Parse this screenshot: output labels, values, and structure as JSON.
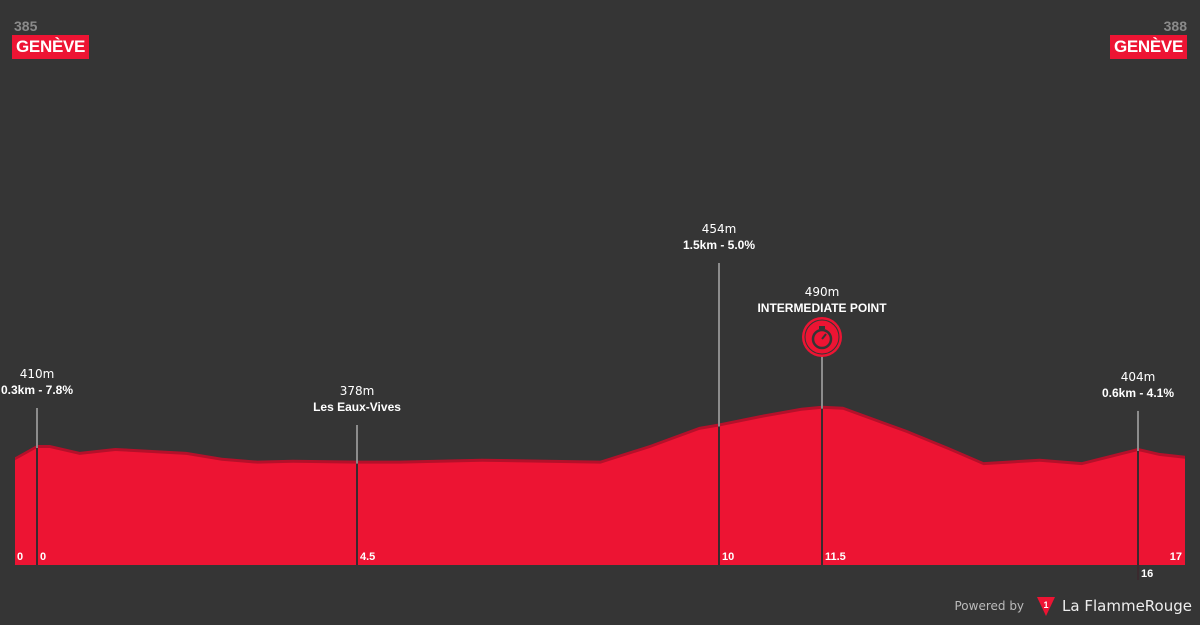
{
  "start": {
    "altitude": "385",
    "name": "GENÈVE"
  },
  "finish": {
    "altitude": "388",
    "name": "GENÈVE"
  },
  "footer": {
    "powered_by": "Powered by",
    "brand": "La FlammeRouge",
    "logo_number": "1",
    "logo_icon": "flamme-rouge-triangle-icon"
  },
  "colors": {
    "background": "#353535",
    "profile": "#ed1433",
    "profile_shade": "#b5102a",
    "line": "#8c8c8c"
  },
  "chart_data": {
    "type": "area",
    "xlabel": "",
    "ylabel": "",
    "x_unit": "km",
    "y_unit": "m",
    "xlim": [
      0,
      17
    ],
    "profile": [
      [
        0,
        385
      ],
      [
        0,
        410
      ],
      [
        0.18,
        410
      ],
      [
        0.6,
        396
      ],
      [
        1.1,
        404
      ],
      [
        2.1,
        396
      ],
      [
        2.6,
        384
      ],
      [
        3.1,
        378
      ],
      [
        3.6,
        380
      ],
      [
        4.5,
        378
      ],
      [
        5.15,
        378
      ],
      [
        6.4,
        382
      ],
      [
        8.2,
        378
      ],
      [
        8.95,
        410
      ],
      [
        9.7,
        447
      ],
      [
        10,
        454
      ],
      [
        10.6,
        471
      ],
      [
        11.2,
        486
      ],
      [
        11.5,
        490
      ],
      [
        11.8,
        488
      ],
      [
        12.7,
        441
      ],
      [
        13.3,
        406
      ],
      [
        13.8,
        375
      ],
      [
        14.6,
        382
      ],
      [
        15.2,
        375
      ],
      [
        16,
        404
      ],
      [
        16.45,
        394
      ],
      [
        17,
        388
      ]
    ],
    "edge_ticks": {
      "start": "0",
      "end": "17"
    },
    "markers": [
      {
        "km": 0,
        "tick": "0",
        "elevation": "410m",
        "label": "0.3km - 7.8%",
        "type": "climb"
      },
      {
        "km": 4.5,
        "tick": "4.5",
        "elevation": "378m",
        "label": "Les Eaux-Vives",
        "type": "place"
      },
      {
        "km": 10,
        "tick": "10",
        "elevation": "454m",
        "label": "1.5km - 5.0%",
        "type": "climb"
      },
      {
        "km": 11.5,
        "tick": "11.5",
        "elevation": "490m",
        "label": "INTERMEDIATE POINT",
        "type": "intermediate",
        "icon": "stopwatch-icon"
      },
      {
        "km": 16,
        "tick": "16",
        "elevation": "404m",
        "label": "0.6km - 4.1%",
        "type": "climb"
      }
    ]
  }
}
